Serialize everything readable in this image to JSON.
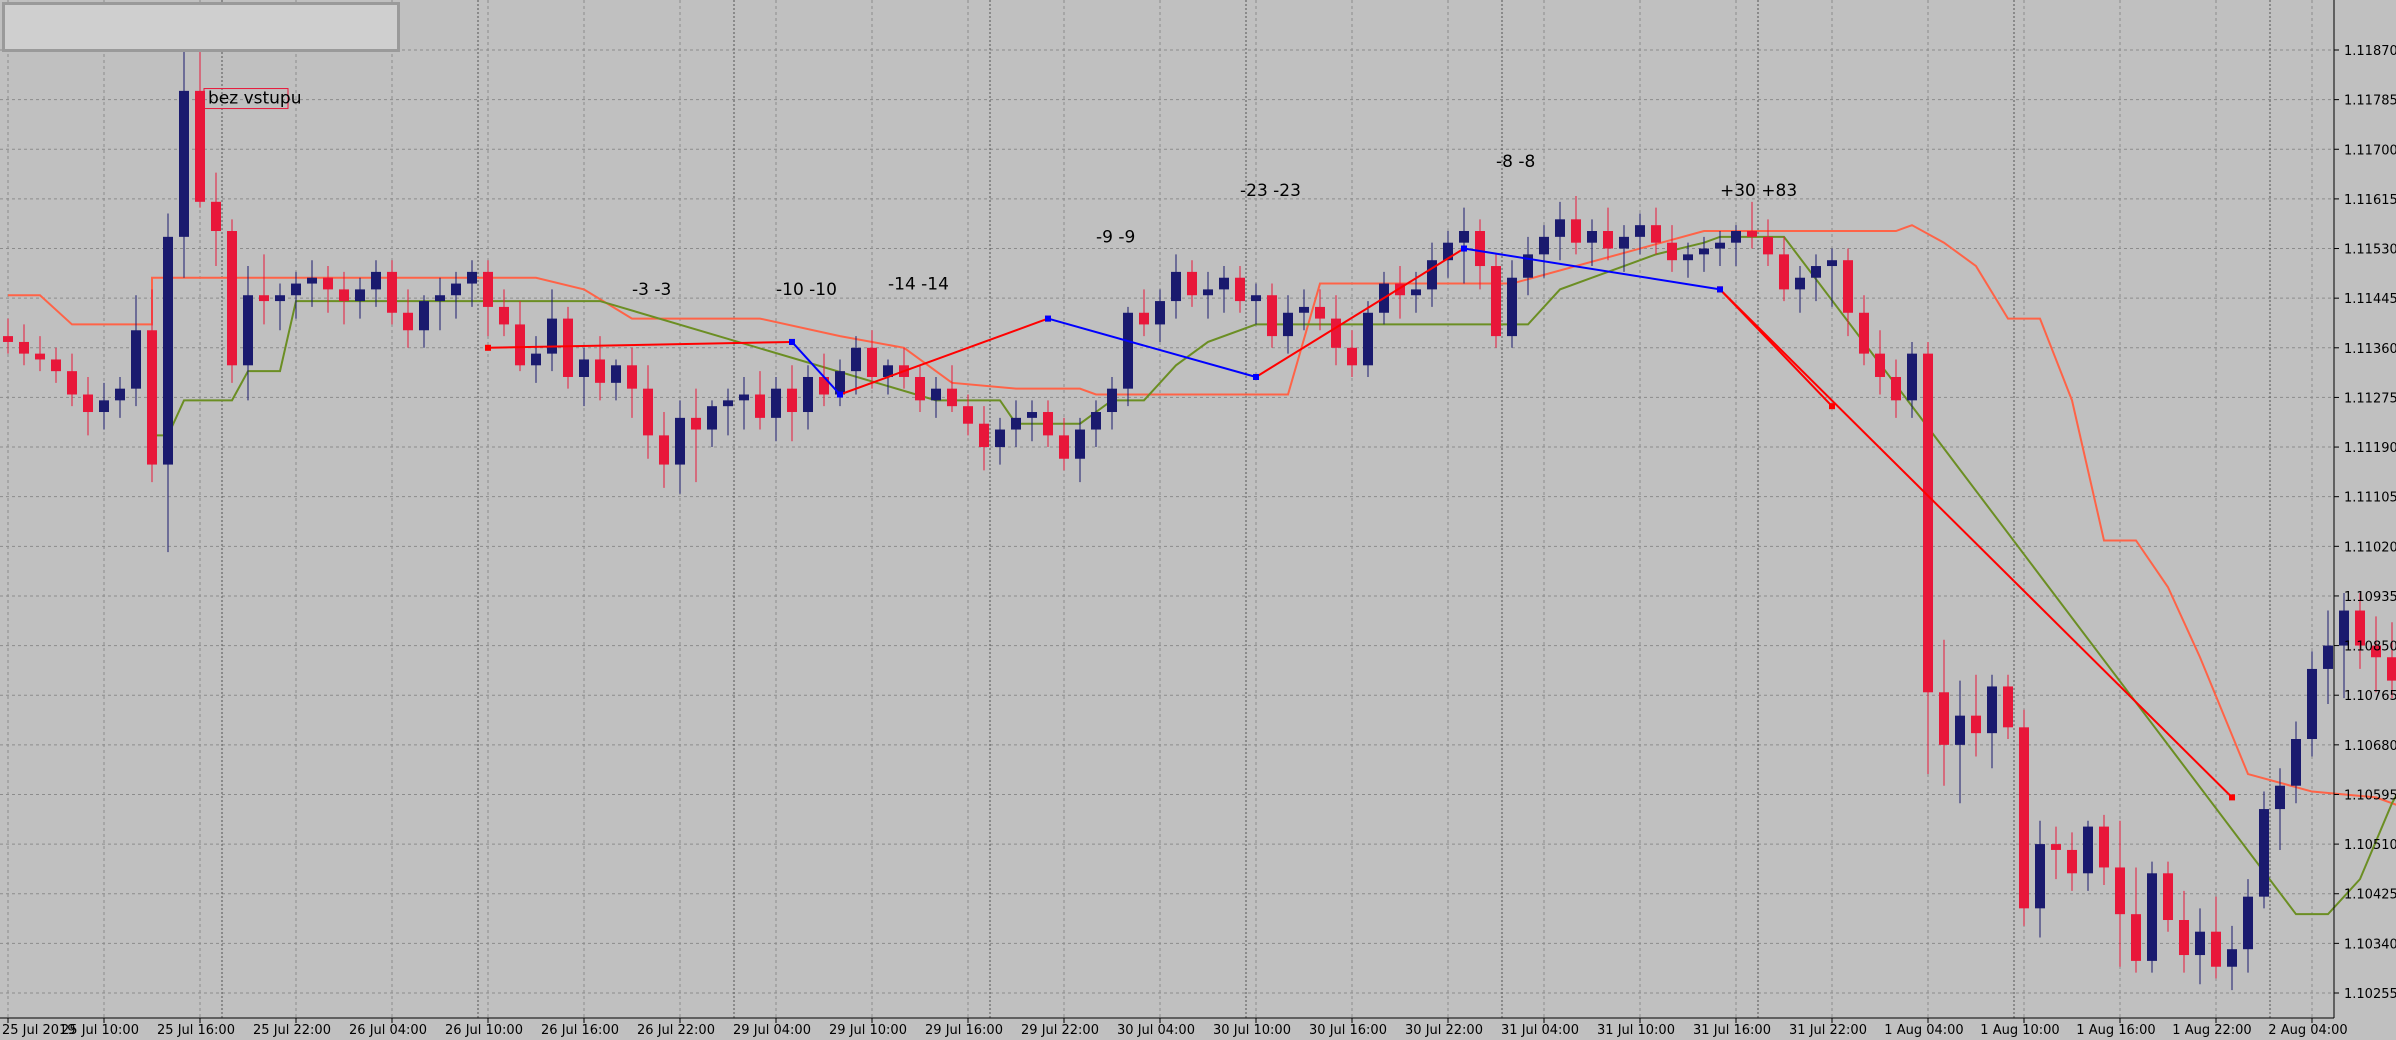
{
  "chart_data": {
    "type": "candlestick",
    "title": "",
    "price_axis": {
      "labels": [
        "1.11870",
        "1.11785",
        "1.11700",
        "1.11615",
        "1.11530",
        "1.11445",
        "1.11360",
        "1.11275",
        "1.11190",
        "1.11105",
        "1.11020",
        "1.10935",
        "1.10850",
        "1.10765",
        "1.10680",
        "1.10595",
        "1.10510",
        "1.10425",
        "1.10340",
        "1.10255"
      ],
      "range": [
        1.1022,
        1.1192
      ]
    },
    "time_axis": {
      "labels": [
        "25 Jul 2019",
        "25 Jul 10:00",
        "25 Jul 16:00",
        "25 Jul 22:00",
        "26 Jul 04:00",
        "26 Jul 10:00",
        "26 Jul 16:00",
        "26 Jul 22:00",
        "29 Jul 04:00",
        "29 Jul 10:00",
        "29 Jul 16:00",
        "29 Jul 22:00",
        "30 Jul 04:00",
        "30 Jul 10:00",
        "30 Jul 16:00",
        "30 Jul 22:00",
        "31 Jul 04:00",
        "31 Jul 10:00",
        "31 Jul 16:00",
        "31 Jul 22:00",
        "1 Aug 04:00",
        "1 Aug 10:00",
        "1 Aug 16:00",
        "1 Aug 22:00",
        "2 Aug 04:00"
      ],
      "bars_per_label": 6
    },
    "colors": {
      "background": "#c0c0c0",
      "grid": "#8c8c8c",
      "bull": "#1a1a6e",
      "bear": "#e8173a",
      "upper_band": "#ff6347",
      "lower_band": "#6b8e23",
      "trade_red": "#ff0000",
      "trade_blue": "#0000ff"
    },
    "candles": [
      [
        1.1138,
        1.1141,
        1.1135,
        1.1137
      ],
      [
        1.1137,
        1.114,
        1.1133,
        1.1135
      ],
      [
        1.1135,
        1.1138,
        1.1132,
        1.1134
      ],
      [
        1.1134,
        1.1136,
        1.113,
        1.1132
      ],
      [
        1.1132,
        1.1135,
        1.1126,
        1.1128
      ],
      [
        1.1128,
        1.1131,
        1.1121,
        1.1125
      ],
      [
        1.1125,
        1.113,
        1.1122,
        1.1127
      ],
      [
        1.1127,
        1.1131,
        1.1124,
        1.1129
      ],
      [
        1.1129,
        1.1145,
        1.1126,
        1.1139
      ],
      [
        1.1139,
        1.1146,
        1.1113,
        1.1116
      ],
      [
        1.1116,
        1.1159,
        1.1101,
        1.1155
      ],
      [
        1.1155,
        1.119,
        1.1148,
        1.118
      ],
      [
        1.118,
        1.1188,
        1.116,
        1.1161
      ],
      [
        1.1161,
        1.1166,
        1.115,
        1.1156
      ],
      [
        1.1156,
        1.1158,
        1.113,
        1.1133
      ],
      [
        1.1133,
        1.115,
        1.1127,
        1.1145
      ],
      [
        1.1145,
        1.1152,
        1.114,
        1.1144
      ],
      [
        1.1144,
        1.1147,
        1.1139,
        1.1145
      ],
      [
        1.1145,
        1.1149,
        1.1141,
        1.1147
      ],
      [
        1.1147,
        1.1151,
        1.1143,
        1.1148
      ],
      [
        1.1148,
        1.115,
        1.1142,
        1.1146
      ],
      [
        1.1146,
        1.1149,
        1.114,
        1.1144
      ],
      [
        1.1144,
        1.1148,
        1.1141,
        1.1146
      ],
      [
        1.1146,
        1.1151,
        1.1143,
        1.1149
      ],
      [
        1.1149,
        1.1151,
        1.114,
        1.1142
      ],
      [
        1.1142,
        1.1146,
        1.1136,
        1.1139
      ],
      [
        1.1139,
        1.1145,
        1.1136,
        1.1144
      ],
      [
        1.1144,
        1.1148,
        1.1139,
        1.1145
      ],
      [
        1.1145,
        1.1149,
        1.1141,
        1.1147
      ],
      [
        1.1147,
        1.1151,
        1.1143,
        1.1149
      ],
      [
        1.1149,
        1.1151,
        1.1138,
        1.1143
      ],
      [
        1.1143,
        1.1146,
        1.1138,
        1.114
      ],
      [
        1.114,
        1.1144,
        1.1132,
        1.1133
      ],
      [
        1.1133,
        1.1138,
        1.113,
        1.1135
      ],
      [
        1.1135,
        1.1146,
        1.1132,
        1.1141
      ],
      [
        1.1141,
        1.1143,
        1.1129,
        1.1131
      ],
      [
        1.1131,
        1.1136,
        1.1126,
        1.1134
      ],
      [
        1.1134,
        1.1138,
        1.1127,
        1.113
      ],
      [
        1.113,
        1.1134,
        1.1127,
        1.1133
      ],
      [
        1.1133,
        1.1136,
        1.1124,
        1.1129
      ],
      [
        1.1129,
        1.1133,
        1.1117,
        1.1121
      ],
      [
        1.1121,
        1.1125,
        1.1112,
        1.1116
      ],
      [
        1.1116,
        1.1127,
        1.1111,
        1.1124
      ],
      [
        1.1124,
        1.1129,
        1.1113,
        1.1122
      ],
      [
        1.1122,
        1.1127,
        1.1119,
        1.1126
      ],
      [
        1.1126,
        1.1129,
        1.1121,
        1.1127
      ],
      [
        1.1127,
        1.1131,
        1.1122,
        1.1128
      ],
      [
        1.1128,
        1.1132,
        1.1122,
        1.1124
      ],
      [
        1.1124,
        1.1131,
        1.112,
        1.1129
      ],
      [
        1.1129,
        1.1133,
        1.112,
        1.1125
      ],
      [
        1.1125,
        1.1133,
        1.1122,
        1.1131
      ],
      [
        1.1131,
        1.1135,
        1.1126,
        1.1128
      ],
      [
        1.1128,
        1.1134,
        1.1126,
        1.1132
      ],
      [
        1.1132,
        1.1138,
        1.1128,
        1.1136
      ],
      [
        1.1136,
        1.1139,
        1.1129,
        1.1131
      ],
      [
        1.1131,
        1.1134,
        1.1128,
        1.1133
      ],
      [
        1.1133,
        1.1136,
        1.1129,
        1.1131
      ],
      [
        1.1131,
        1.1133,
        1.1125,
        1.1127
      ],
      [
        1.1127,
        1.1131,
        1.1124,
        1.1129
      ],
      [
        1.1129,
        1.1133,
        1.1125,
        1.1126
      ],
      [
        1.1126,
        1.1128,
        1.1121,
        1.1123
      ],
      [
        1.1123,
        1.1126,
        1.1115,
        1.1119
      ],
      [
        1.1119,
        1.1124,
        1.1116,
        1.1122
      ],
      [
        1.1122,
        1.1127,
        1.1119,
        1.1124
      ],
      [
        1.1124,
        1.1127,
        1.112,
        1.1125
      ],
      [
        1.1125,
        1.1127,
        1.1119,
        1.1121
      ],
      [
        1.1121,
        1.1124,
        1.1115,
        1.1117
      ],
      [
        1.1117,
        1.1124,
        1.1113,
        1.1122
      ],
      [
        1.1122,
        1.1127,
        1.1119,
        1.1125
      ],
      [
        1.1125,
        1.1131,
        1.1122,
        1.1129
      ],
      [
        1.1129,
        1.1143,
        1.1126,
        1.1142
      ],
      [
        1.1142,
        1.1146,
        1.1138,
        1.114
      ],
      [
        1.114,
        1.1146,
        1.1137,
        1.1144
      ],
      [
        1.1144,
        1.1152,
        1.1141,
        1.1149
      ],
      [
        1.1149,
        1.1151,
        1.1143,
        1.1145
      ],
      [
        1.1145,
        1.1149,
        1.1141,
        1.1146
      ],
      [
        1.1146,
        1.115,
        1.1142,
        1.1148
      ],
      [
        1.1148,
        1.115,
        1.1142,
        1.1144
      ],
      [
        1.1144,
        1.1147,
        1.114,
        1.1145
      ],
      [
        1.1145,
        1.1147,
        1.1136,
        1.1138
      ],
      [
        1.1138,
        1.1145,
        1.1135,
        1.1142
      ],
      [
        1.1142,
        1.1146,
        1.1139,
        1.1143
      ],
      [
        1.1143,
        1.1146,
        1.1139,
        1.1141
      ],
      [
        1.1141,
        1.1145,
        1.1133,
        1.1136
      ],
      [
        1.1136,
        1.1139,
        1.1131,
        1.1133
      ],
      [
        1.1133,
        1.1144,
        1.1131,
        1.1142
      ],
      [
        1.1142,
        1.1149,
        1.114,
        1.1147
      ],
      [
        1.1147,
        1.115,
        1.1141,
        1.1145
      ],
      [
        1.1145,
        1.1149,
        1.1142,
        1.1146
      ],
      [
        1.1146,
        1.1154,
        1.1143,
        1.1151
      ],
      [
        1.1151,
        1.1156,
        1.1148,
        1.1154
      ],
      [
        1.1154,
        1.116,
        1.1147,
        1.1156
      ],
      [
        1.1156,
        1.1158,
        1.1146,
        1.115
      ],
      [
        1.115,
        1.1152,
        1.1136,
        1.1138
      ],
      [
        1.1138,
        1.1151,
        1.1136,
        1.1148
      ],
      [
        1.1148,
        1.1155,
        1.1145,
        1.1152
      ],
      [
        1.1152,
        1.1157,
        1.1148,
        1.1155
      ],
      [
        1.1155,
        1.1161,
        1.1151,
        1.1158
      ],
      [
        1.1158,
        1.1162,
        1.1152,
        1.1154
      ],
      [
        1.1154,
        1.1158,
        1.115,
        1.1156
      ],
      [
        1.1156,
        1.116,
        1.1151,
        1.1153
      ],
      [
        1.1153,
        1.1157,
        1.1149,
        1.1155
      ],
      [
        1.1155,
        1.1159,
        1.1152,
        1.1157
      ],
      [
        1.1157,
        1.116,
        1.1152,
        1.1154
      ],
      [
        1.1154,
        1.1157,
        1.1149,
        1.1151
      ],
      [
        1.1151,
        1.1154,
        1.1148,
        1.1152
      ],
      [
        1.1152,
        1.1155,
        1.1149,
        1.1153
      ],
      [
        1.1153,
        1.1156,
        1.115,
        1.1154
      ],
      [
        1.1154,
        1.1157,
        1.115,
        1.1156
      ],
      [
        1.1156,
        1.1161,
        1.1153,
        1.1155
      ],
      [
        1.1155,
        1.1158,
        1.115,
        1.1152
      ],
      [
        1.1152,
        1.1155,
        1.1144,
        1.1146
      ],
      [
        1.1146,
        1.115,
        1.1142,
        1.1148
      ],
      [
        1.1148,
        1.1152,
        1.1144,
        1.115
      ],
      [
        1.115,
        1.1153,
        1.1143,
        1.1151
      ],
      [
        1.1151,
        1.1153,
        1.1138,
        1.1142
      ],
      [
        1.1142,
        1.1145,
        1.1133,
        1.1135
      ],
      [
        1.1135,
        1.1139,
        1.1128,
        1.1131
      ],
      [
        1.1131,
        1.1134,
        1.1124,
        1.1127
      ],
      [
        1.1127,
        1.1137,
        1.1124,
        1.1135
      ],
      [
        1.1135,
        1.1137,
        1.1063,
        1.1077
      ],
      [
        1.1077,
        1.1086,
        1.1061,
        1.1068
      ],
      [
        1.1068,
        1.1079,
        1.1058,
        1.1073
      ],
      [
        1.1073,
        1.108,
        1.1066,
        1.107
      ],
      [
        1.107,
        1.108,
        1.1064,
        1.1078
      ],
      [
        1.1078,
        1.108,
        1.1069,
        1.1071
      ],
      [
        1.1071,
        1.1074,
        1.1037,
        1.104
      ],
      [
        1.104,
        1.1055,
        1.1035,
        1.1051
      ],
      [
        1.1051,
        1.1054,
        1.1045,
        1.105
      ],
      [
        1.105,
        1.1053,
        1.1043,
        1.1046
      ],
      [
        1.1046,
        1.1055,
        1.1043,
        1.1054
      ],
      [
        1.1054,
        1.1056,
        1.1044,
        1.1047
      ],
      [
        1.1047,
        1.1055,
        1.103,
        1.1039
      ],
      [
        1.1039,
        1.1047,
        1.1029,
        1.1031
      ],
      [
        1.1031,
        1.1048,
        1.1029,
        1.1046
      ],
      [
        1.1046,
        1.1048,
        1.1036,
        1.1038
      ],
      [
        1.1038,
        1.1043,
        1.1029,
        1.1032
      ],
      [
        1.1032,
        1.104,
        1.1027,
        1.1036
      ],
      [
        1.1036,
        1.1042,
        1.1028,
        1.103
      ],
      [
        1.103,
        1.1037,
        1.1026,
        1.1033
      ],
      [
        1.1033,
        1.1045,
        1.1029,
        1.1042
      ],
      [
        1.1042,
        1.106,
        1.104,
        1.1057
      ],
      [
        1.1057,
        1.1064,
        1.105,
        1.1061
      ],
      [
        1.1061,
        1.1072,
        1.1058,
        1.1069
      ],
      [
        1.1069,
        1.1084,
        1.1066,
        1.1081
      ],
      [
        1.1081,
        1.1091,
        1.1075,
        1.1085
      ],
      [
        1.1085,
        1.1094,
        1.1076,
        1.1091
      ],
      [
        1.1091,
        1.1094,
        1.1081,
        1.1085
      ],
      [
        1.1085,
        1.109,
        1.1077,
        1.1083
      ],
      [
        1.1083,
        1.1089,
        1.1076,
        1.1079
      ],
      [
        1.1079,
        1.1084,
        1.1074,
        1.1081
      ],
      [
        1.1081,
        1.1096,
        1.1078,
        1.109
      ],
      [
        1.109,
        1.1094,
        1.1086,
        1.1091
      ],
      [
        1.1091,
        1.1093,
        1.1072,
        1.1074
      ]
    ],
    "upper_band": [
      [
        0,
        1.1145
      ],
      [
        2,
        1.1145
      ],
      [
        4,
        1.114
      ],
      [
        9,
        1.114
      ],
      [
        9,
        1.1148
      ],
      [
        19,
        1.1148
      ],
      [
        26,
        1.1148
      ],
      [
        26,
        1.1148
      ],
      [
        33,
        1.1148
      ],
      [
        36,
        1.1146
      ],
      [
        39,
        1.1141
      ],
      [
        47,
        1.1141
      ],
      [
        52,
        1.1138
      ],
      [
        56,
        1.1136
      ],
      [
        59,
        1.113
      ],
      [
        63,
        1.1129
      ],
      [
        67,
        1.1129
      ],
      [
        68,
        1.1128
      ],
      [
        75,
        1.1128
      ],
      [
        77,
        1.1128
      ],
      [
        80,
        1.1128
      ],
      [
        82,
        1.1147
      ],
      [
        94,
        1.1147
      ],
      [
        106,
        1.1156
      ],
      [
        112,
        1.1156
      ],
      [
        116,
        1.1156
      ],
      [
        118,
        1.1156
      ],
      [
        119,
        1.1157
      ],
      [
        121,
        1.1154
      ],
      [
        123,
        1.115
      ],
      [
        125,
        1.1141
      ],
      [
        127,
        1.1141
      ],
      [
        129,
        1.1127
      ],
      [
        131,
        1.1103
      ],
      [
        133,
        1.1103
      ],
      [
        135,
        1.1095
      ],
      [
        137,
        1.1083
      ],
      [
        140,
        1.1063
      ],
      [
        144,
        1.106
      ],
      [
        148,
        1.1059
      ],
      [
        152,
        1.1055
      ],
      [
        154,
        1.1054
      ],
      [
        156,
        1.1054
      ],
      [
        160,
        1.1054
      ]
    ],
    "lower_band": [
      [
        9,
        1.1121
      ],
      [
        10,
        1.1121
      ],
      [
        11,
        1.1127
      ],
      [
        14,
        1.1127
      ],
      [
        15,
        1.1132
      ],
      [
        17,
        1.1132
      ],
      [
        18,
        1.1144
      ],
      [
        26,
        1.1144
      ],
      [
        26,
        1.1144
      ],
      [
        37,
        1.1144
      ],
      [
        58,
        1.1127
      ],
      [
        59,
        1.1127
      ],
      [
        60,
        1.1127
      ],
      [
        62,
        1.1127
      ],
      [
        63,
        1.1123
      ],
      [
        67,
        1.1123
      ],
      [
        69,
        1.1127
      ],
      [
        71,
        1.1127
      ],
      [
        73,
        1.1133
      ],
      [
        75,
        1.1137
      ],
      [
        78,
        1.114
      ],
      [
        95,
        1.114
      ],
      [
        97,
        1.1146
      ],
      [
        99,
        1.1148
      ],
      [
        101,
        1.115
      ],
      [
        103,
        1.1152
      ],
      [
        106,
        1.1154
      ],
      [
        107,
        1.1155
      ],
      [
        110,
        1.1155
      ],
      [
        111,
        1.1155
      ],
      [
        143,
        1.1039
      ],
      [
        145,
        1.1039
      ],
      [
        147,
        1.1045
      ],
      [
        149,
        1.1058
      ],
      [
        151,
        1.1068
      ],
      [
        155,
        1.1068
      ],
      [
        156,
        1.1075
      ]
    ],
    "lines_red": [
      [
        [
          30,
          1.1136
        ],
        [
          49,
          1.1137
        ]
      ],
      [
        [
          52,
          1.1128
        ],
        [
          65,
          1.1141
        ]
      ],
      [
        [
          78,
          1.1131
        ],
        [
          91,
          1.1153
        ]
      ],
      [
        [
          107,
          1.1146
        ],
        [
          114,
          1.1126
        ]
      ],
      [
        [
          107,
          1.1146
        ],
        [
          139,
          1.1059
        ]
      ]
    ],
    "lines_blue": [
      [
        [
          49,
          1.1137
        ],
        [
          52,
          1.1128
        ]
      ],
      [
        [
          65,
          1.1141
        ],
        [
          78,
          1.1131
        ]
      ],
      [
        [
          91,
          1.1153
        ],
        [
          107,
          1.1146
        ]
      ]
    ],
    "annotations": [
      {
        "text": "bez vstupu",
        "bar": 12,
        "price": 1.1178,
        "boxed": true
      },
      {
        "text": "-3 -3",
        "bar": 39,
        "price": 1.1145
      },
      {
        "text": "-10 -10",
        "bar": 48,
        "price": 1.1145
      },
      {
        "text": "-14 -14",
        "bar": 55,
        "price": 1.1146
      },
      {
        "text": "-9 -9",
        "bar": 68,
        "price": 1.1154
      },
      {
        "text": "-23 -23",
        "bar": 77,
        "price": 1.1162
      },
      {
        "text": "-8 -8",
        "bar": 93,
        "price": 1.1167
      },
      {
        "text": "+30 +83",
        "bar": 107,
        "price": 1.1162
      }
    ]
  }
}
